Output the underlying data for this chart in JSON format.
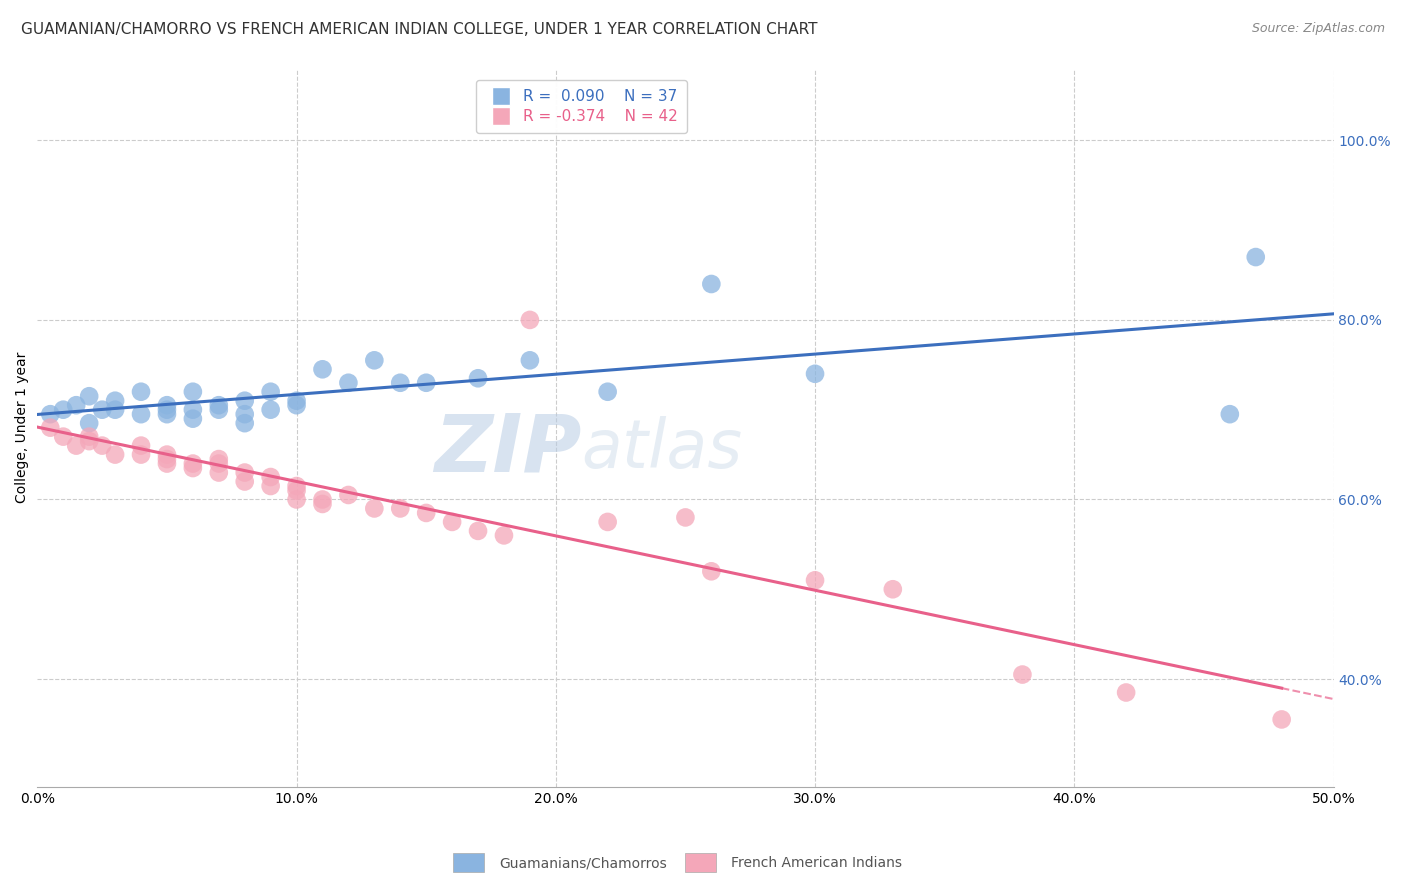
{
  "title": "GUAMANIAN/CHAMORRO VS FRENCH AMERICAN INDIAN COLLEGE, UNDER 1 YEAR CORRELATION CHART",
  "source": "Source: ZipAtlas.com",
  "ylabel": "College, Under 1 year",
  "xlabel_ticks": [
    "0.0%",
    "10.0%",
    "20.0%",
    "30.0%",
    "40.0%",
    "50.0%"
  ],
  "ylabel_right_ticks": [
    "40.0%",
    "60.0%",
    "80.0%",
    "100.0%"
  ],
  "xlim": [
    0.0,
    0.5
  ],
  "ylim": [
    0.28,
    1.08
  ],
  "blue_R": 0.09,
  "blue_N": 37,
  "pink_R": -0.374,
  "pink_N": 42,
  "blue_color": "#8ab4e0",
  "pink_color": "#f4a7b9",
  "blue_line_color": "#3c6fbe",
  "pink_line_color": "#e8608a",
  "watermark_zip": "ZIP",
  "watermark_atlas": "atlas",
  "legend_label_blue": "Guamanians/Chamorros",
  "legend_label_pink": "French American Indians",
  "blue_x": [
    0.005,
    0.01,
    0.015,
    0.02,
    0.02,
    0.025,
    0.03,
    0.03,
    0.04,
    0.04,
    0.05,
    0.05,
    0.05,
    0.06,
    0.06,
    0.06,
    0.07,
    0.07,
    0.08,
    0.08,
    0.08,
    0.09,
    0.09,
    0.1,
    0.1,
    0.11,
    0.12,
    0.13,
    0.14,
    0.15,
    0.17,
    0.19,
    0.22,
    0.26,
    0.3,
    0.46,
    0.47
  ],
  "blue_y": [
    0.695,
    0.7,
    0.705,
    0.685,
    0.715,
    0.7,
    0.71,
    0.7,
    0.72,
    0.695,
    0.7,
    0.705,
    0.695,
    0.7,
    0.72,
    0.69,
    0.7,
    0.705,
    0.71,
    0.695,
    0.685,
    0.7,
    0.72,
    0.71,
    0.705,
    0.745,
    0.73,
    0.755,
    0.73,
    0.73,
    0.735,
    0.755,
    0.72,
    0.84,
    0.74,
    0.695,
    0.87
  ],
  "pink_x": [
    0.005,
    0.01,
    0.015,
    0.02,
    0.02,
    0.025,
    0.03,
    0.04,
    0.04,
    0.05,
    0.05,
    0.05,
    0.06,
    0.06,
    0.07,
    0.07,
    0.07,
    0.08,
    0.08,
    0.09,
    0.09,
    0.1,
    0.1,
    0.1,
    0.11,
    0.11,
    0.12,
    0.13,
    0.14,
    0.15,
    0.16,
    0.17,
    0.18,
    0.19,
    0.22,
    0.25,
    0.26,
    0.3,
    0.33,
    0.38,
    0.42,
    0.48
  ],
  "pink_y": [
    0.68,
    0.67,
    0.66,
    0.67,
    0.665,
    0.66,
    0.65,
    0.66,
    0.65,
    0.65,
    0.64,
    0.645,
    0.64,
    0.635,
    0.64,
    0.645,
    0.63,
    0.62,
    0.63,
    0.615,
    0.625,
    0.615,
    0.61,
    0.6,
    0.6,
    0.595,
    0.605,
    0.59,
    0.59,
    0.585,
    0.575,
    0.565,
    0.56,
    0.8,
    0.575,
    0.58,
    0.52,
    0.51,
    0.5,
    0.405,
    0.385,
    0.355
  ],
  "title_fontsize": 11,
  "axis_label_fontsize": 10,
  "tick_fontsize": 10,
  "source_fontsize": 9,
  "background_color": "#ffffff",
  "grid_color": "#cccccc"
}
